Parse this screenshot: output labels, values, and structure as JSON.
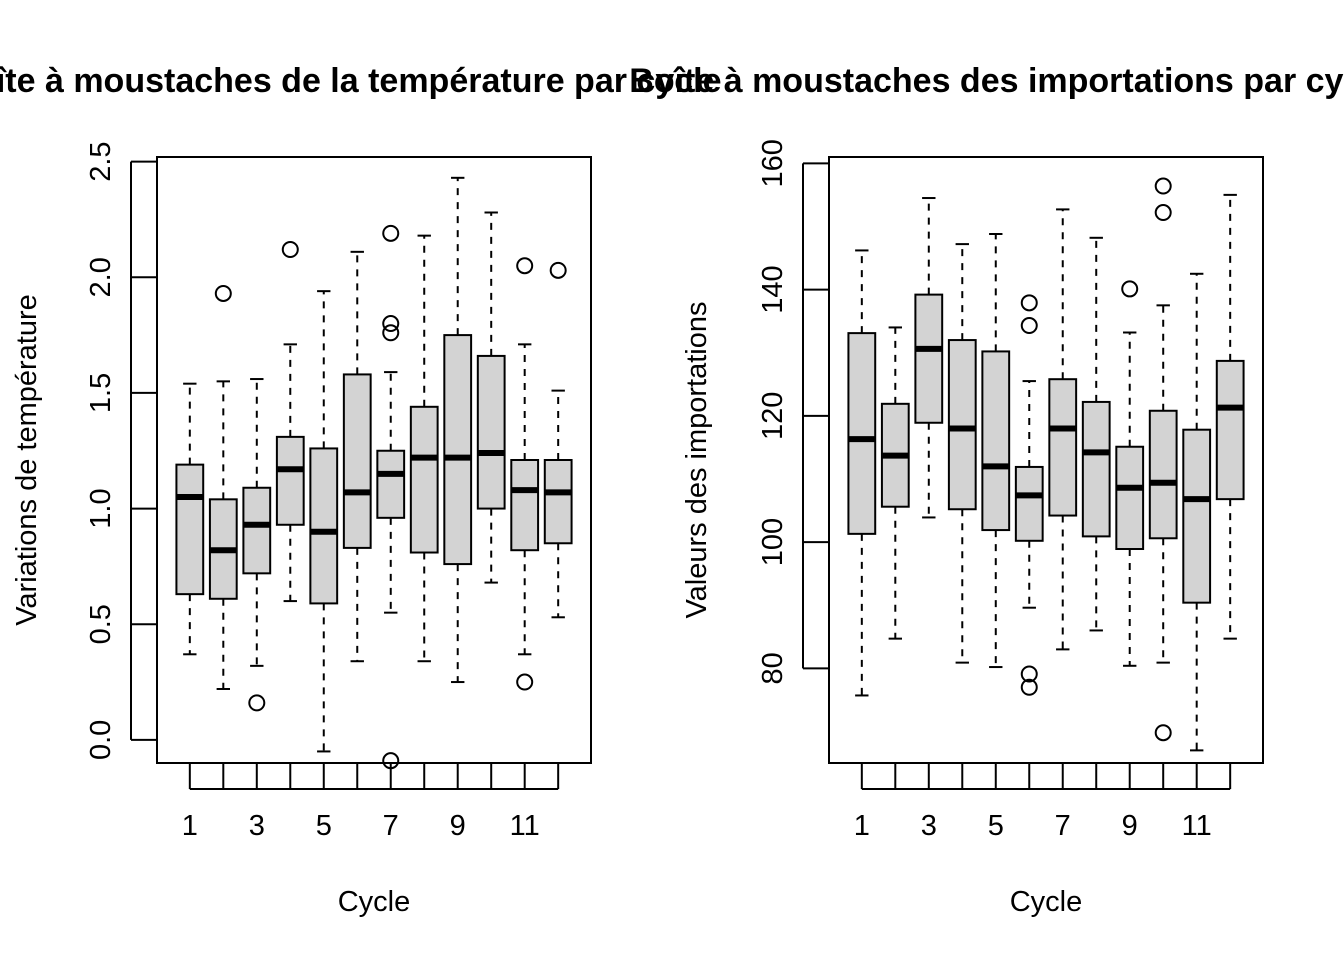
{
  "chart_data": [
    {
      "type": "boxplot",
      "title": "Boîte à moustaches de la température par cycle",
      "xlabel": "Cycle",
      "ylabel": "Variations de température",
      "ylim": [
        -0.1,
        2.5
      ],
      "y_ticks": [
        "0.0",
        "0.5",
        "1.0",
        "1.5",
        "2.0",
        "2.5"
      ],
      "x_ticks": [
        "1",
        "3",
        "5",
        "7",
        "9",
        "11"
      ],
      "box_fill": "#d3d3d3",
      "grid": false,
      "boxes": [
        {
          "cycle": 1,
          "whisker_low": 0.37,
          "q1": 0.63,
          "median": 1.05,
          "q3": 1.19,
          "whisker_high": 1.54,
          "outliers": []
        },
        {
          "cycle": 2,
          "whisker_low": 0.22,
          "q1": 0.61,
          "median": 0.82,
          "q3": 1.04,
          "whisker_high": 1.55,
          "outliers": [
            1.93
          ]
        },
        {
          "cycle": 3,
          "whisker_low": 0.32,
          "q1": 0.72,
          "median": 0.93,
          "q3": 1.09,
          "whisker_high": 1.56,
          "outliers": [
            0.16
          ]
        },
        {
          "cycle": 4,
          "whisker_low": 0.6,
          "q1": 0.93,
          "median": 1.17,
          "q3": 1.31,
          "whisker_high": 1.71,
          "outliers": [
            2.12
          ]
        },
        {
          "cycle": 5,
          "whisker_low": -0.05,
          "q1": 0.59,
          "median": 0.9,
          "q3": 1.26,
          "whisker_high": 1.94,
          "outliers": []
        },
        {
          "cycle": 6,
          "whisker_low": 0.34,
          "q1": 0.83,
          "median": 1.07,
          "q3": 1.58,
          "whisker_high": 2.11,
          "outliers": []
        },
        {
          "cycle": 7,
          "whisker_low": 0.55,
          "q1": 0.96,
          "median": 1.15,
          "q3": 1.25,
          "whisker_high": 1.59,
          "outliers": [
            -0.09,
            1.76,
            1.8,
            2.19
          ]
        },
        {
          "cycle": 8,
          "whisker_low": 0.34,
          "q1": 0.81,
          "median": 1.22,
          "q3": 1.44,
          "whisker_high": 2.18,
          "outliers": []
        },
        {
          "cycle": 9,
          "whisker_low": 0.25,
          "q1": 0.76,
          "median": 1.22,
          "q3": 1.75,
          "whisker_high": 2.43,
          "outliers": []
        },
        {
          "cycle": 10,
          "whisker_low": 0.68,
          "q1": 1.0,
          "median": 1.24,
          "q3": 1.66,
          "whisker_high": 2.28,
          "outliers": []
        },
        {
          "cycle": 11,
          "whisker_low": 0.37,
          "q1": 0.82,
          "median": 1.08,
          "q3": 1.21,
          "whisker_high": 1.71,
          "outliers": [
            0.25,
            2.05
          ]
        },
        {
          "cycle": 12,
          "whisker_low": 0.53,
          "q1": 0.85,
          "median": 1.07,
          "q3": 1.21,
          "whisker_high": 1.51,
          "outliers": [
            2.03
          ]
        }
      ]
    },
    {
      "type": "boxplot",
      "title": "Boîte à moustaches des importations par cycle",
      "xlabel": "Cycle",
      "ylabel": "Valeurs des importations",
      "ylim": [
        65,
        160
      ],
      "y_ticks": [
        "80",
        "100",
        "120",
        "140",
        "160"
      ],
      "x_ticks": [
        "1",
        "3",
        "5",
        "7",
        "9",
        "11"
      ],
      "box_fill": "#d3d3d3",
      "grid": false,
      "boxes": [
        {
          "cycle": 1,
          "whisker_low": 75.7,
          "q1": 101.3,
          "median": 116.3,
          "q3": 133.1,
          "whisker_high": 146.2,
          "outliers": []
        },
        {
          "cycle": 2,
          "whisker_low": 84.7,
          "q1": 105.6,
          "median": 113.7,
          "q3": 121.9,
          "whisker_high": 134.0,
          "outliers": []
        },
        {
          "cycle": 3,
          "whisker_low": 103.9,
          "q1": 118.9,
          "median": 130.6,
          "q3": 139.2,
          "whisker_high": 154.5,
          "outliers": []
        },
        {
          "cycle": 4,
          "whisker_low": 80.9,
          "q1": 105.2,
          "median": 118.0,
          "q3": 132.0,
          "whisker_high": 147.2,
          "outliers": []
        },
        {
          "cycle": 5,
          "whisker_low": 80.2,
          "q1": 101.9,
          "median": 112.0,
          "q3": 130.2,
          "whisker_high": 148.8,
          "outliers": []
        },
        {
          "cycle": 6,
          "whisker_low": 89.6,
          "q1": 100.2,
          "median": 107.4,
          "q3": 111.9,
          "whisker_high": 125.5,
          "outliers": [
            77.0,
            79.1,
            134.3,
            137.9
          ]
        },
        {
          "cycle": 7,
          "whisker_low": 83.0,
          "q1": 104.2,
          "median": 118.0,
          "q3": 125.8,
          "whisker_high": 152.7,
          "outliers": []
        },
        {
          "cycle": 8,
          "whisker_low": 86.0,
          "q1": 100.9,
          "median": 114.2,
          "q3": 122.2,
          "whisker_high": 148.2,
          "outliers": []
        },
        {
          "cycle": 9,
          "whisker_low": 80.4,
          "q1": 98.9,
          "median": 108.6,
          "q3": 115.1,
          "whisker_high": 133.2,
          "outliers": [
            140.1
          ]
        },
        {
          "cycle": 10,
          "whisker_low": 80.9,
          "q1": 100.6,
          "median": 109.4,
          "q3": 120.8,
          "whisker_high": 137.5,
          "outliers": [
            69.8,
            152.2,
            156.4
          ]
        },
        {
          "cycle": 11,
          "whisker_low": 67.0,
          "q1": 90.4,
          "median": 106.8,
          "q3": 117.8,
          "whisker_high": 142.5,
          "outliers": []
        },
        {
          "cycle": 12,
          "whisker_low": 84.7,
          "q1": 106.8,
          "median": 121.3,
          "q3": 128.7,
          "whisker_high": 155.0,
          "outliers": []
        }
      ]
    }
  ]
}
